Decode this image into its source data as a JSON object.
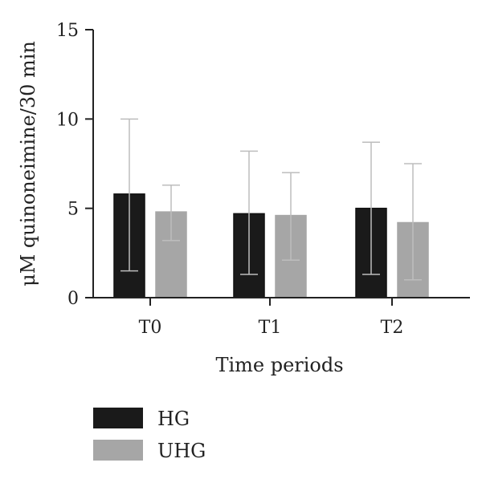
{
  "chart_data": {
    "type": "bar",
    "xlabel": "Time periods",
    "ylabel": "μM quinoneimine/30 min",
    "ylim": [
      0,
      15
    ],
    "yticks": [
      0,
      5,
      10,
      15
    ],
    "categories": [
      "T0",
      "T1",
      "T2"
    ],
    "grid": false,
    "legend_position": "bottom-left",
    "series": [
      {
        "name": "HG",
        "color": "#1a1a1a",
        "values": [
          5.8,
          4.7,
          5.0
        ],
        "error_low": [
          1.5,
          1.3,
          1.3
        ],
        "error_high": [
          10.0,
          8.2,
          8.7
        ]
      },
      {
        "name": "UHG",
        "color": "#a6a6a6",
        "values": [
          4.8,
          4.6,
          4.2
        ],
        "error_low": [
          3.2,
          2.1,
          1.0
        ],
        "error_high": [
          6.3,
          7.0,
          7.5
        ]
      }
    ]
  }
}
